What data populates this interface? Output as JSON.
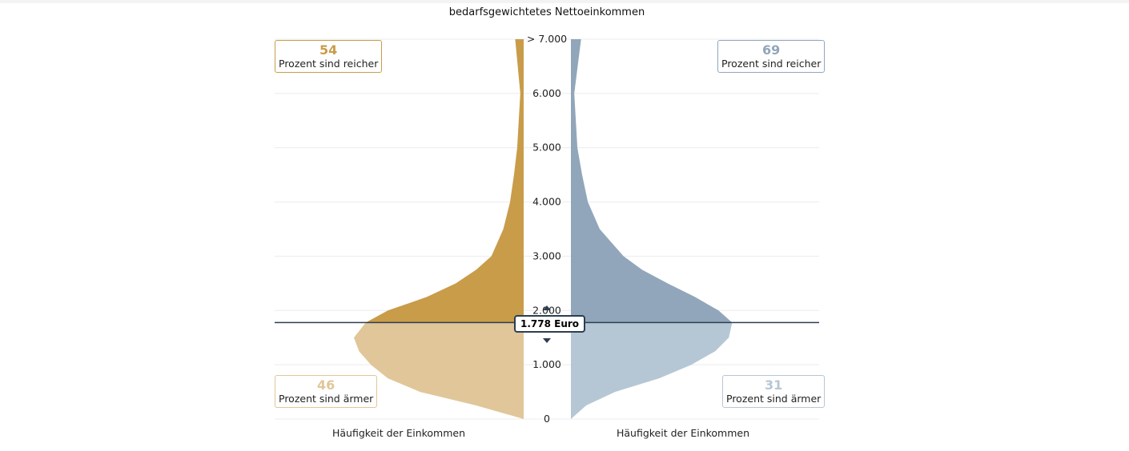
{
  "chart_data": {
    "type": "violin",
    "title": "bedarfsgewichtetes Nettoeinkommen",
    "ylim": [
      0,
      7000
    ],
    "y_ticks": [
      "0",
      "1.000",
      "2.000",
      "3.000",
      "4.000",
      "5.000",
      "6.000",
      "> 7.000"
    ],
    "y_tick_values": [
      0,
      1000,
      2000,
      3000,
      4000,
      5000,
      6000,
      7000
    ],
    "xlabel_left": "Häufigkeit der Einkommen",
    "xlabel_right": "Häufigkeit der Einkommen",
    "marker": {
      "value": 1778,
      "label": "1.778 Euro"
    },
    "income_levels": [
      0,
      250,
      500,
      750,
      1000,
      1250,
      1500,
      1778,
      2000,
      2250,
      2500,
      2750,
      3000,
      3500,
      4000,
      4500,
      5000,
      6000,
      7000
    ],
    "series": [
      {
        "name": "left",
        "side": "left",
        "density": [
          0,
          0.28,
          0.61,
          0.8,
          0.9,
          0.97,
          1.0,
          0.93,
          0.8,
          0.57,
          0.4,
          0.28,
          0.19,
          0.12,
          0.08,
          0.057,
          0.038,
          0.02,
          0.05
        ],
        "colors": {
          "above": "#c99c4a",
          "below": "#e0c699"
        },
        "richer": {
          "value": "54",
          "label": "Prozent sind reicher"
        },
        "poorer": {
          "value": "46",
          "label": "Prozent sind ärmer"
        }
      },
      {
        "name": "right",
        "side": "right",
        "density": [
          0,
          0.09,
          0.26,
          0.52,
          0.71,
          0.85,
          0.93,
          0.95,
          0.87,
          0.73,
          0.57,
          0.42,
          0.31,
          0.17,
          0.1,
          0.066,
          0.038,
          0.02,
          0.06
        ],
        "colors": {
          "above": "#91a6ba",
          "below": "#b5c7d5"
        },
        "richer": {
          "value": "69",
          "label": "Prozent sind reicher"
        },
        "poorer": {
          "value": "31",
          "label": "Prozent sind ärmer"
        }
      }
    ]
  }
}
